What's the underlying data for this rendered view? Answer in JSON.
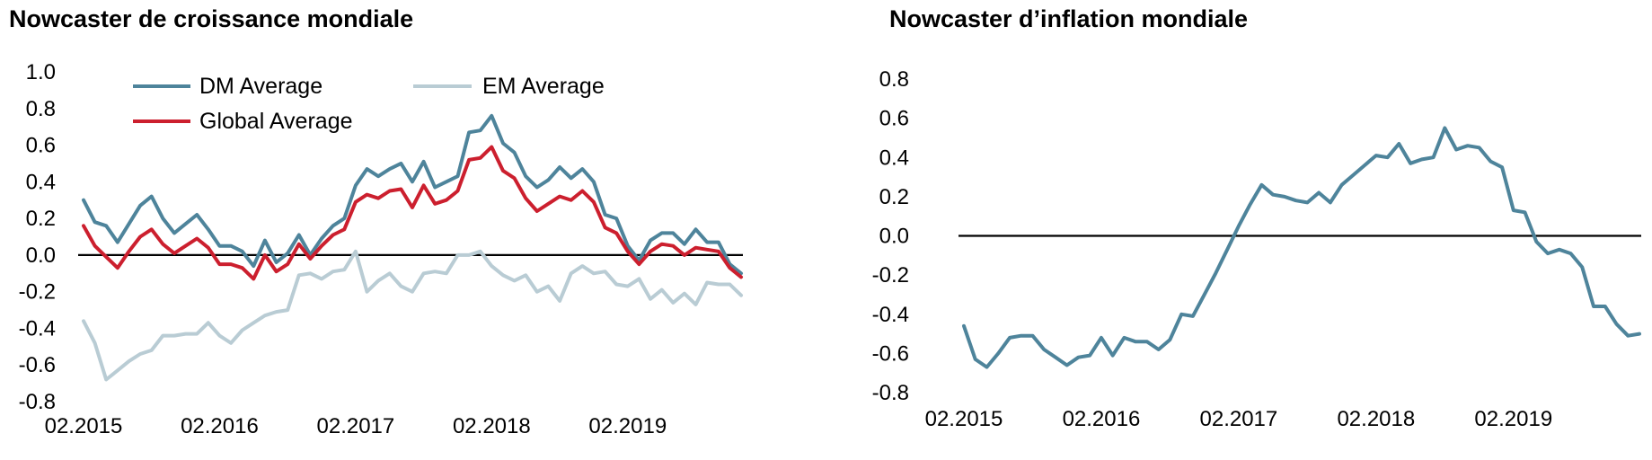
{
  "chart_data": [
    {
      "type": "line",
      "title": "Nowcaster de croissance mondiale",
      "xlabel": "",
      "ylabel": "",
      "ylim": [
        -0.8,
        1.0
      ],
      "yticks": [
        "1.0",
        "0.8",
        "0.6",
        "0.4",
        "0.2",
        "0.0",
        "-0.2",
        "-0.4",
        "-0.6",
        "-0.8"
      ],
      "xticks": [
        "02.2015",
        "02.2016",
        "02.2017",
        "02.2018",
        "02.2019"
      ],
      "x_start": "02.2015",
      "grid": false,
      "legend": "top-left",
      "series": [
        {
          "name": "DM Average",
          "color": "#4e849b",
          "values": [
            0.3,
            0.18,
            0.16,
            0.07,
            0.17,
            0.27,
            0.32,
            0.2,
            0.12,
            0.17,
            0.22,
            0.14,
            0.05,
            0.05,
            0.02,
            -0.06,
            0.08,
            -0.04,
            0.01,
            0.11,
            0.0,
            0.09,
            0.16,
            0.2,
            0.38,
            0.47,
            0.43,
            0.47,
            0.5,
            0.4,
            0.51,
            0.37,
            0.4,
            0.43,
            0.67,
            0.68,
            0.76,
            0.61,
            0.56,
            0.43,
            0.37,
            0.41,
            0.48,
            0.42,
            0.47,
            0.4,
            0.22,
            0.2,
            0.05,
            -0.03,
            0.08,
            0.12,
            0.12,
            0.06,
            0.14,
            0.07,
            0.07,
            -0.05,
            -0.1
          ]
        },
        {
          "name": "EM Average",
          "color": "#b9ccd4",
          "values": [
            -0.36,
            -0.48,
            -0.68,
            -0.63,
            -0.58,
            -0.54,
            -0.52,
            -0.44,
            -0.44,
            -0.43,
            -0.43,
            -0.37,
            -0.44,
            -0.48,
            -0.41,
            -0.37,
            -0.33,
            -0.31,
            -0.3,
            -0.11,
            -0.1,
            -0.13,
            -0.09,
            -0.08,
            0.02,
            -0.2,
            -0.14,
            -0.1,
            -0.17,
            -0.2,
            -0.1,
            -0.09,
            -0.1,
            0.0,
            0.0,
            0.02,
            -0.06,
            -0.11,
            -0.14,
            -0.11,
            -0.2,
            -0.17,
            -0.25,
            -0.1,
            -0.06,
            -0.1,
            -0.09,
            -0.16,
            -0.17,
            -0.13,
            -0.24,
            -0.19,
            -0.26,
            -0.21,
            -0.27,
            -0.15,
            -0.16,
            -0.16,
            -0.22
          ]
        },
        {
          "name": "Global Average",
          "color": "#cc1f2e",
          "values": [
            0.16,
            0.05,
            -0.01,
            -0.07,
            0.02,
            0.1,
            0.14,
            0.06,
            0.01,
            0.05,
            0.09,
            0.04,
            -0.05,
            -0.05,
            -0.07,
            -0.13,
            0.0,
            -0.09,
            -0.05,
            0.06,
            -0.02,
            0.05,
            0.11,
            0.14,
            0.29,
            0.33,
            0.31,
            0.35,
            0.36,
            0.26,
            0.38,
            0.28,
            0.3,
            0.35,
            0.52,
            0.53,
            0.59,
            0.46,
            0.42,
            0.31,
            0.24,
            0.28,
            0.32,
            0.3,
            0.35,
            0.29,
            0.15,
            0.12,
            0.02,
            -0.05,
            0.02,
            0.06,
            0.05,
            0.0,
            0.04,
            0.03,
            0.02,
            -0.07,
            -0.12
          ]
        }
      ]
    },
    {
      "type": "line",
      "title": "Nowcaster d’inflation mondiale",
      "xlabel": "",
      "ylabel": "",
      "ylim": [
        -0.8,
        0.8
      ],
      "yticks": [
        "0.8",
        "0.6",
        "0.4",
        "0.2",
        "0.0",
        "-0.2",
        "-0.4",
        "-0.6",
        "-0.8"
      ],
      "xticks": [
        "02.2015",
        "02.2016",
        "02.2017",
        "02.2018",
        "02.2019"
      ],
      "x_start": "02.2015",
      "grid": false,
      "legend": "none",
      "series": [
        {
          "name": "",
          "color": "#4e849b",
          "values": [
            -0.46,
            -0.63,
            -0.67,
            -0.6,
            -0.52,
            -0.51,
            -0.51,
            -0.58,
            -0.62,
            -0.66,
            -0.62,
            -0.61,
            -0.52,
            -0.61,
            -0.52,
            -0.54,
            -0.54,
            -0.58,
            -0.53,
            -0.4,
            -0.41,
            -0.3,
            -0.19,
            -0.07,
            0.05,
            0.16,
            0.26,
            0.21,
            0.2,
            0.18,
            0.17,
            0.22,
            0.17,
            0.26,
            0.31,
            0.36,
            0.41,
            0.4,
            0.47,
            0.37,
            0.39,
            0.4,
            0.55,
            0.44,
            0.46,
            0.45,
            0.38,
            0.35,
            0.13,
            0.12,
            -0.03,
            -0.09,
            -0.07,
            -0.09,
            -0.16,
            -0.36,
            -0.36,
            -0.45,
            -0.51,
            -0.5
          ]
        }
      ]
    }
  ]
}
